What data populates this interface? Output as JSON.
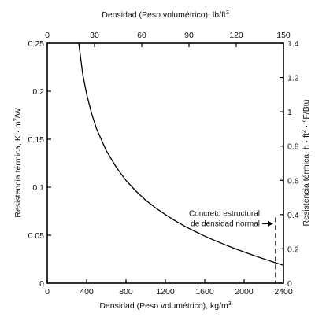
{
  "chart_data": {
    "type": "line",
    "title": "",
    "axes": {
      "x_bottom": {
        "label": "Densidad (Peso volumétrico), kg/m",
        "label_superscript": "3",
        "range": [
          0,
          2400
        ],
        "ticks": [
          0,
          400,
          800,
          1200,
          1600,
          2000,
          2400
        ],
        "tick_labels": [
          "0",
          "400",
          "800",
          "1200",
          "1600",
          "2000",
          "2400"
        ]
      },
      "x_top": {
        "label": "Densidad (Peso volumétrico), lb/ft",
        "label_superscript": "3",
        "range": [
          0,
          150
        ],
        "ticks": [
          0,
          30,
          60,
          90,
          120,
          150
        ],
        "tick_labels": [
          "0",
          "30",
          "60",
          "90",
          "120",
          "150"
        ]
      },
      "y_left": {
        "label": "Resistencia térmica, K · m",
        "label_superscript": "2",
        "label_suffix": "/W",
        "range": [
          0,
          0.25
        ],
        "ticks": [
          0,
          0.05,
          0.1,
          0.15,
          0.2,
          0.25
        ],
        "tick_labels": [
          "0",
          "0.05",
          "0.1",
          "0.15",
          "0.2",
          "0.25"
        ]
      },
      "y_right": {
        "label": "Resistencia térmica, h · ft",
        "label_superscript": "2",
        "label_suffix": " · °F/Btu",
        "range": [
          0,
          1.4
        ],
        "ticks": [
          0,
          0.2,
          0.4,
          0.6,
          0.8,
          1.0,
          1.2,
          1.4
        ],
        "tick_labels": [
          "0",
          "0.2",
          "0.4",
          "0.6",
          "0.8",
          "1",
          "1.2",
          "1.4"
        ]
      }
    },
    "series": [
      {
        "x": [
          320,
          360,
          400,
          450,
          500,
          600,
          700,
          800,
          900,
          1000,
          1100,
          1200,
          1300,
          1400,
          1500,
          1600,
          1700,
          1800,
          1900,
          2000,
          2100,
          2200,
          2300,
          2400
        ],
        "y": [
          0.25,
          0.218,
          0.197,
          0.177,
          0.161,
          0.138,
          0.121,
          0.107,
          0.096,
          0.0865,
          0.0785,
          0.0715,
          0.065,
          0.0592,
          0.054,
          0.049,
          0.0445,
          0.0403,
          0.0363,
          0.0325,
          0.0288,
          0.0253,
          0.0219,
          0.0186
        ]
      }
    ],
    "annotations": [
      {
        "lines": [
          "Concreto estructural",
          "de densidad normal"
        ],
        "x": 2320,
        "y_right": 0.37
      }
    ],
    "grid": false,
    "legend": "none"
  }
}
